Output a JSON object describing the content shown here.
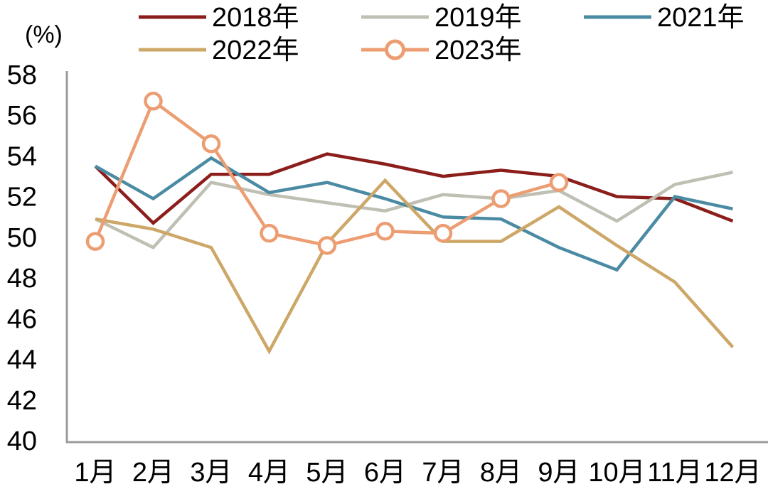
{
  "chart_data": {
    "type": "line",
    "title": "",
    "unit": "(%)",
    "xlabel": "",
    "ylabel": "(%)",
    "grid": false,
    "legend_position": "top",
    "categories": [
      "1月",
      "2月",
      "3月",
      "4月",
      "5月",
      "6月",
      "7月",
      "8月",
      "9月",
      "10月",
      "11月",
      "12月"
    ],
    "y_axis": {
      "min": 40,
      "max": 58,
      "step": 2,
      "tick_labels": [
        "58",
        "56",
        "54",
        "52",
        "50",
        "48",
        "46",
        "44",
        "42",
        "40"
      ]
    },
    "series": [
      {
        "name": "2018年",
        "color": "#8b1d1a",
        "marker": "none",
        "values": [
          53.5,
          50.7,
          53.1,
          53.1,
          54.1,
          53.6,
          53.0,
          53.3,
          53.0,
          52.0,
          51.9,
          50.8
        ]
      },
      {
        "name": "2019年",
        "color": "#bfbfb3",
        "marker": "none",
        "values": [
          50.9,
          49.5,
          52.7,
          52.1,
          51.7,
          51.3,
          52.1,
          51.9,
          52.3,
          50.8,
          52.6,
          53.2
        ]
      },
      {
        "name": "2021年",
        "color": "#4a8ba3",
        "marker": "none",
        "values": [
          53.5,
          51.9,
          53.9,
          52.2,
          52.7,
          51.9,
          51.0,
          50.9,
          49.5,
          48.4,
          52.0,
          51.4
        ]
      },
      {
        "name": "2022年",
        "color": "#cda768",
        "marker": "none",
        "values": [
          50.9,
          50.4,
          49.5,
          44.4,
          49.7,
          52.8,
          49.8,
          49.8,
          51.5,
          49.6,
          47.8,
          44.6
        ]
      },
      {
        "name": "2023年",
        "color": "#ec9d72",
        "marker": "circle",
        "values": [
          49.8,
          56.7,
          54.6,
          50.2,
          49.6,
          50.3,
          50.2,
          51.9,
          52.7
        ]
      }
    ]
  },
  "colors": {
    "axis": "#9b9b9b",
    "text": "#000000",
    "background": "#ffffff"
  }
}
